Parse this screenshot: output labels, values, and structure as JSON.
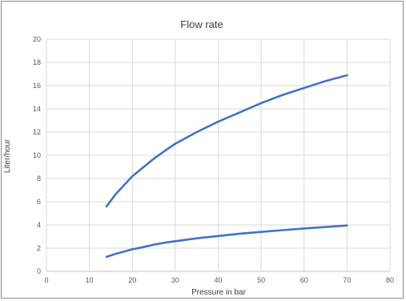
{
  "chart_data": {
    "type": "line",
    "title": "Flow rate",
    "xlabel": "Pressure in bar",
    "ylabel": "Liter/hour",
    "xlim": [
      0,
      80
    ],
    "ylim": [
      0,
      20
    ],
    "xticks": [
      0,
      10,
      20,
      30,
      40,
      50,
      60,
      70,
      80
    ],
    "yticks": [
      0,
      2,
      4,
      6,
      8,
      10,
      12,
      14,
      16,
      18,
      20
    ],
    "grid": true,
    "legend": "none",
    "line_color": "#4472c4",
    "series": [
      {
        "x": [
          14,
          16,
          18,
          20,
          22,
          25,
          28,
          30,
          35,
          40,
          45,
          50,
          55,
          60,
          65,
          70
        ],
        "y": [
          5.6,
          6.6,
          7.4,
          8.2,
          8.8,
          9.7,
          10.5,
          11.0,
          12.0,
          12.9,
          13.7,
          14.5,
          15.2,
          15.8,
          16.4,
          16.9
        ]
      },
      {
        "x": [
          14,
          16,
          18,
          20,
          22,
          25,
          28,
          30,
          35,
          40,
          45,
          50,
          55,
          60,
          65,
          70
        ],
        "y": [
          1.25,
          1.5,
          1.7,
          1.9,
          2.05,
          2.3,
          2.5,
          2.6,
          2.85,
          3.05,
          3.25,
          3.4,
          3.55,
          3.7,
          3.82,
          3.95
        ]
      }
    ]
  }
}
